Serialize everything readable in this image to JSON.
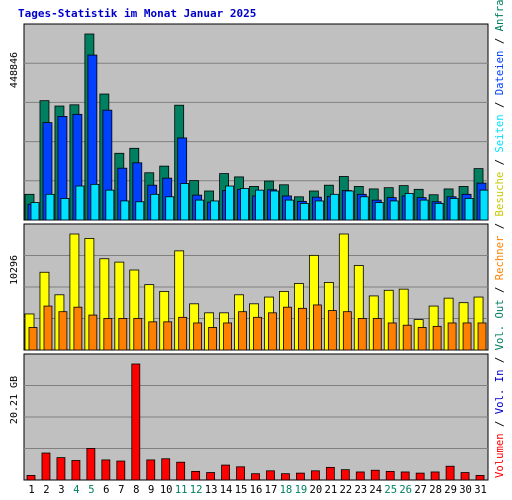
{
  "title": "Tages-Statistik im Monat Januar 2025",
  "colors": {
    "background": "#c0c0c0",
    "frame": "#ffffff",
    "grid": "#808080",
    "anfragen": "#008060",
    "dateien": "#0040ff",
    "seiten": "#00e0ff",
    "besuche": "#ffff00",
    "rechner": "#ff8000",
    "volumen": "#ff0000",
    "vol_in": "#0000cc",
    "vol_out": "#008060",
    "title": "#0000cc",
    "weekend_day": "#008060",
    "normal_day": "#000000"
  },
  "chart_data": [
    {
      "type": "bar",
      "panel": "requests",
      "ylim": [
        0,
        448846
      ],
      "ytick_label": "448846",
      "grid": true,
      "legend_placement": "right",
      "categories": [
        "1",
        "2",
        "3",
        "4",
        "5",
        "6",
        "7",
        "8",
        "9",
        "10",
        "11",
        "12",
        "13",
        "14",
        "15",
        "16",
        "17",
        "18",
        "19",
        "20",
        "21",
        "22",
        "23",
        "24",
        "25",
        "26",
        "27",
        "28",
        "29",
        "30",
        "31"
      ],
      "series": [
        {
          "name": "Anfragen",
          "values": [
            62000,
            288000,
            275000,
            278000,
            448846,
            304000,
            161000,
            173000,
            114000,
            130000,
            277000,
            95000,
            70000,
            112000,
            104000,
            81000,
            94000,
            85000,
            56000,
            70000,
            84000,
            105000,
            81000,
            75000,
            78000,
            83000,
            74000,
            61000,
            75000,
            81000,
            124000
          ]
        },
        {
          "name": "Dateien",
          "values": [
            38000,
            235000,
            250000,
            255000,
            398000,
            265000,
            125000,
            138000,
            84000,
            101000,
            198000,
            60000,
            43000,
            71000,
            74000,
            58000,
            73000,
            58000,
            45000,
            55000,
            57000,
            71000,
            62000,
            48000,
            54000,
            58000,
            54000,
            44000,
            56000,
            62000,
            89000
          ]
        },
        {
          "name": "Seiten",
          "values": [
            42000,
            62000,
            52000,
            82000,
            86000,
            72000,
            46000,
            44000,
            62000,
            56000,
            88000,
            48000,
            46000,
            82000,
            76000,
            72000,
            70000,
            48000,
            40000,
            46000,
            62000,
            70000,
            56000,
            42000,
            46000,
            64000,
            48000,
            40000,
            52000,
            52000,
            72000
          ]
        }
      ]
    },
    {
      "type": "bar",
      "panel": "visits",
      "ylim": [
        0,
        10296
      ],
      "ytick_label": "10296",
      "grid": true,
      "legend_placement": "right",
      "categories": [
        "1",
        "2",
        "3",
        "4",
        "5",
        "6",
        "7",
        "8",
        "9",
        "10",
        "11",
        "12",
        "13",
        "14",
        "15",
        "16",
        "17",
        "18",
        "19",
        "20",
        "21",
        "22",
        "23",
        "24",
        "25",
        "26",
        "27",
        "28",
        "29",
        "30",
        "31"
      ],
      "series": [
        {
          "name": "Besuche",
          "values": [
            3200,
            6900,
            4900,
            10296,
            9900,
            8100,
            7800,
            7100,
            5800,
            5200,
            8800,
            4100,
            3300,
            3300,
            4900,
            4100,
            4700,
            5200,
            5900,
            8400,
            6000,
            10296,
            7500,
            4800,
            5300,
            5400,
            2700,
            3900,
            4600,
            4200,
            4700
          ]
        },
        {
          "name": "Rechner",
          "values": [
            2000,
            3900,
            3400,
            3800,
            3100,
            2800,
            2800,
            2800,
            2500,
            2500,
            2900,
            2400,
            2000,
            2400,
            3400,
            2900,
            3300,
            3800,
            3700,
            4000,
            3500,
            3400,
            2800,
            2800,
            2400,
            2200,
            2000,
            2100,
            2400,
            2400,
            2400
          ]
        }
      ]
    },
    {
      "type": "bar",
      "panel": "volume",
      "unit": "GB",
      "ylim": [
        0,
        20.21
      ],
      "ytick_label": "20.21 GB",
      "grid": true,
      "legend_placement": "right",
      "categories": [
        "1",
        "2",
        "3",
        "4",
        "5",
        "6",
        "7",
        "8",
        "9",
        "10",
        "11",
        "12",
        "13",
        "14",
        "15",
        "16",
        "17",
        "18",
        "19",
        "20",
        "21",
        "22",
        "23",
        "24",
        "25",
        "26",
        "27",
        "28",
        "29",
        "30",
        "31"
      ],
      "series": [
        {
          "name": "Volumen",
          "values": [
            0.8,
            4.7,
            3.9,
            3.4,
            5.5,
            3.5,
            3.3,
            20.21,
            3.5,
            3.7,
            3.1,
            1.5,
            1.3,
            2.6,
            2.3,
            1.1,
            1.6,
            1.1,
            1.2,
            1.6,
            2.2,
            1.8,
            1.4,
            1.7,
            1.5,
            1.4,
            1.2,
            1.4,
            2.4,
            1.3,
            0.8
          ]
        }
      ]
    }
  ],
  "legend": {
    "top": [
      "Anfragen",
      "Dateien",
      "Seiten"
    ],
    "middle": [
      "Besuche",
      "Rechner"
    ],
    "bottom": [
      "Volumen",
      "Vol. In",
      "Vol. Out"
    ]
  },
  "x_axis": {
    "labels": [
      "1",
      "2",
      "3",
      "4",
      "5",
      "6",
      "7",
      "8",
      "9",
      "10",
      "11",
      "12",
      "13",
      "14",
      "15",
      "16",
      "17",
      "18",
      "19",
      "20",
      "21",
      "22",
      "23",
      "24",
      "25",
      "26",
      "27",
      "28",
      "29",
      "30",
      "31"
    ],
    "weekend": [
      4,
      5,
      11,
      12,
      18,
      19,
      25,
      26
    ]
  }
}
